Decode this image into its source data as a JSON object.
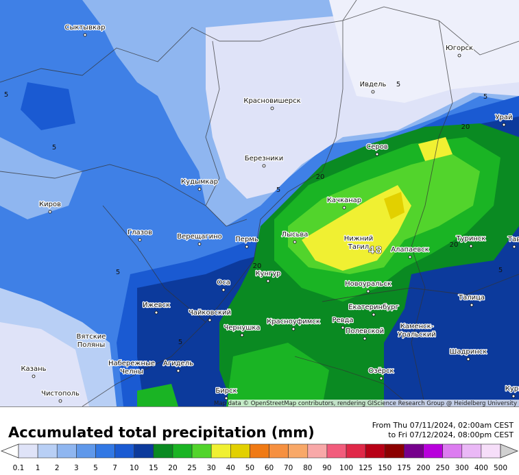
{
  "map": {
    "cities": [
      [
        "Сыктывкар"
      ],
      [
        "Югорск"
      ],
      [
        "Ивдель"
      ],
      [
        "Красновишерск"
      ],
      [
        "Урай"
      ],
      [
        "Серов"
      ],
      [
        "Березники"
      ],
      [
        "Кудымкар"
      ],
      [
        "Качканар"
      ],
      [
        "Киров"
      ],
      [
        "Глазов"
      ],
      [
        "Верещагино"
      ],
      [
        "Пермь"
      ],
      [
        "Лысьва"
      ],
      [
        "Нижний",
        "Тагил"
      ],
      [
        "Алапаевск"
      ],
      [
        "Туринск"
      ],
      [
        "Тав"
      ],
      [
        "Оса"
      ],
      [
        "Кунгур"
      ],
      [
        "Новоуральск"
      ],
      [
        "Ижевск"
      ],
      [
        "Талица"
      ],
      [
        "Чайковский"
      ],
      [
        "Екатеринбург"
      ],
      [
        "Красноуфимск"
      ],
      [
        "Ревда"
      ],
      [
        "Чернушка"
      ],
      [
        "Полевской"
      ],
      [
        "Каменск-",
        "Уральский"
      ],
      [
        "Вятские",
        "Поляны"
      ],
      [
        "Шадринск"
      ],
      [
        "Набережные",
        "Челны"
      ],
      [
        "Агидель"
      ],
      [
        "Казань"
      ],
      [
        "Озёрск"
      ],
      [
        "Чистополь"
      ],
      [
        "Бирск"
      ],
      [
        "Кург"
      ]
    ],
    "contours": [
      "5",
      "5",
      "5",
      "20",
      "5",
      "20",
      "5",
      "20",
      "5",
      "20",
      "5",
      "5"
    ],
    "peak": "48",
    "attribution": "Map data © OpenStreetMap contributors, rendering GIScience Research Group @ Heidelberg University"
  },
  "footer": {
    "title": "Accumulated total precipitation (mm)",
    "from": "From Thu 07/11/2024, 02:00am CEST",
    "to": "to Fri 07/12/2024, 08:00pm CEST"
  },
  "legend": {
    "levels": [
      0.1,
      1,
      2,
      3,
      5,
      7,
      10,
      15,
      20,
      25,
      30,
      40,
      50,
      60,
      70,
      80,
      90,
      100,
      125,
      150,
      175,
      200,
      250,
      300,
      400,
      500
    ],
    "under_color": "#ffffff",
    "colors": [
      "#dfe3f8",
      "#b8cff5",
      "#8fb6f0",
      "#5f98ea",
      "#3278e4",
      "#1a5ad2",
      "#0c3a9c",
      "#0a8a22",
      "#1ab424",
      "#52d42c",
      "#f0f032",
      "#e2d000",
      "#f07a14",
      "#f69040",
      "#f8a868",
      "#f8a8a8",
      "#f25c7c",
      "#e02848",
      "#b80016",
      "#8c0000",
      "#76008c",
      "#b800dc",
      "#dc7cf0",
      "#eab8f6",
      "#f6def9",
      "#d0d0d0"
    ]
  }
}
